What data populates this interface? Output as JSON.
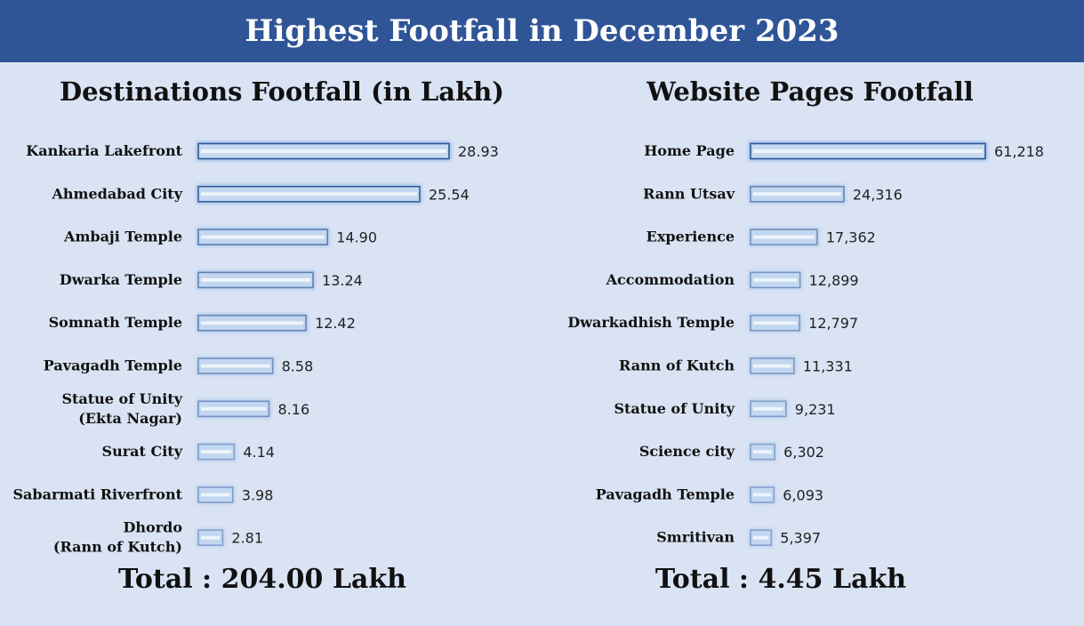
{
  "title": "Highest Footfall in December 2023",
  "colors": {
    "banner": "#2f5597",
    "background": "#dae3f3",
    "bar_fill": "#c6d9f1",
    "bar_edge": "#2f5597",
    "bar_glow": "#6fa8e6"
  },
  "chart_data": [
    {
      "type": "bar",
      "orientation": "horizontal",
      "title": "Destinations Footfall (in Lakh)",
      "categories": [
        "Kankaria Lakefront",
        "Ahmedabad City",
        "Ambaji Temple",
        "Dwarka Temple",
        "Somnath Temple",
        "Pavagadh Temple",
        "Statue of Unity\n(Ekta Nagar)",
        "Surat City",
        "Sabarmati Riverfront",
        "Dhordo\n(Rann of Kutch)"
      ],
      "values": [
        28.93,
        25.54,
        14.9,
        13.24,
        12.42,
        8.58,
        8.16,
        4.14,
        3.98,
        2.81
      ],
      "value_labels": [
        "28.93",
        "25.54",
        "14.90",
        "13.24",
        "12.42",
        "8.58",
        "8.16",
        "4.14",
        "3.98",
        "2.81"
      ],
      "total": "Total : 204.00 Lakh"
    },
    {
      "type": "bar",
      "orientation": "horizontal",
      "title": "Website Pages Footfall",
      "categories": [
        "Home Page",
        "Rann Utsav",
        "Experience",
        "Accommodation",
        "Dwarkadhish Temple",
        "Rann of Kutch",
        "Statue of Unity",
        "Science city",
        "Pavagadh Temple",
        "Smritivan"
      ],
      "values": [
        61218,
        24316,
        17362,
        12899,
        12797,
        11331,
        9231,
        6302,
        6093,
        5397
      ],
      "value_labels": [
        "61,218",
        "24,316",
        "17,362",
        "12,899",
        "12,797",
        "11,331",
        "9,231",
        "6,302",
        "6,093",
        "5,397"
      ],
      "total": "Total : 4.45 Lakh"
    }
  ]
}
